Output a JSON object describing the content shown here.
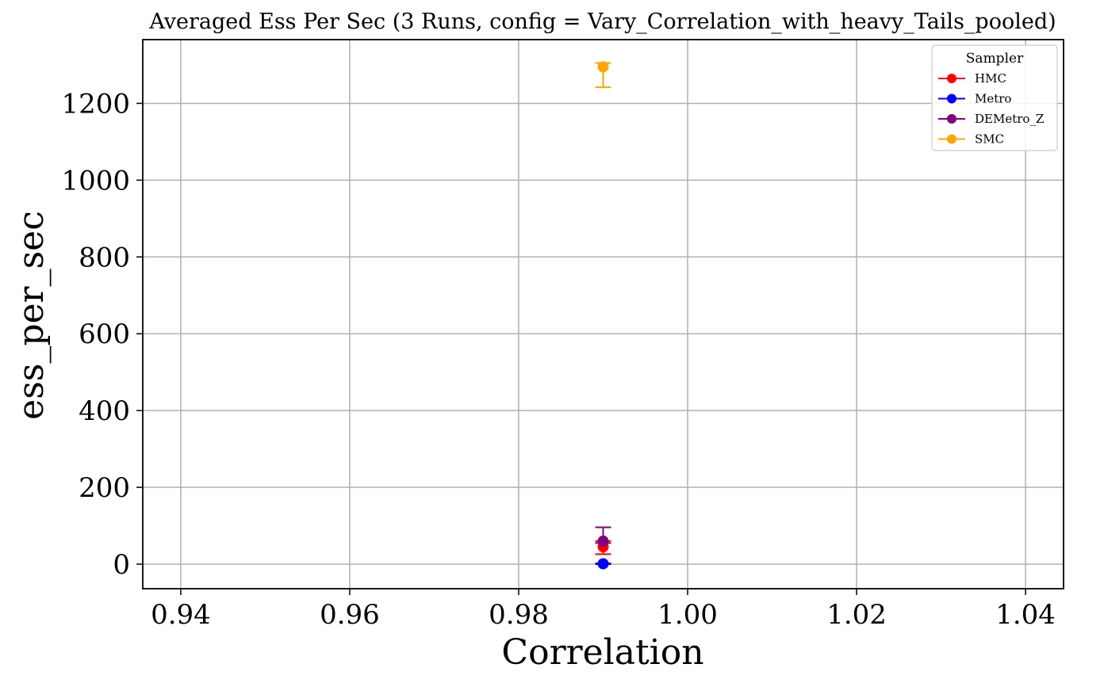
{
  "chart_data": {
    "type": "scatter",
    "title": "Averaged Ess Per Sec (3 Runs, config = Vary_Correlation_with_heavy_Tails_pooled)",
    "xlabel": "Correlation",
    "ylabel": "ess_per_sec",
    "xlim": [
      0.9355,
      1.0445
    ],
    "ylim": [
      -64,
      1366
    ],
    "x_ticks": [
      0.94,
      0.96,
      0.98,
      1.0,
      1.02,
      1.04
    ],
    "x_tick_labels": [
      "0.94",
      "0.96",
      "0.98",
      "1.00",
      "1.02",
      "1.04"
    ],
    "y_ticks": [
      0,
      200,
      400,
      600,
      800,
      1000,
      1200
    ],
    "y_tick_labels": [
      "0",
      "200",
      "400",
      "600",
      "800",
      "1000",
      "1200"
    ],
    "grid": true,
    "legend": {
      "title": "Sampler",
      "placement": "top-right"
    },
    "series": [
      {
        "name": "HMC",
        "color": "#ff0000",
        "x": [
          0.99
        ],
        "y": [
          45
        ],
        "err_low": [
          26
        ],
        "err_high": [
          60
        ]
      },
      {
        "name": "Metro",
        "color": "#0000ff",
        "x": [
          0.99
        ],
        "y": [
          1
        ],
        "err_low": [
          0
        ],
        "err_high": [
          2
        ]
      },
      {
        "name": "DEMetro_Z",
        "color": "#800080",
        "x": [
          0.99
        ],
        "y": [
          60
        ],
        "err_low": [
          55
        ],
        "err_high": [
          96
        ]
      },
      {
        "name": "SMC",
        "color": "#ffa500",
        "x": [
          0.99
        ],
        "y": [
          1295
        ],
        "err_low": [
          1242
        ],
        "err_high": [
          1305
        ]
      }
    ]
  }
}
